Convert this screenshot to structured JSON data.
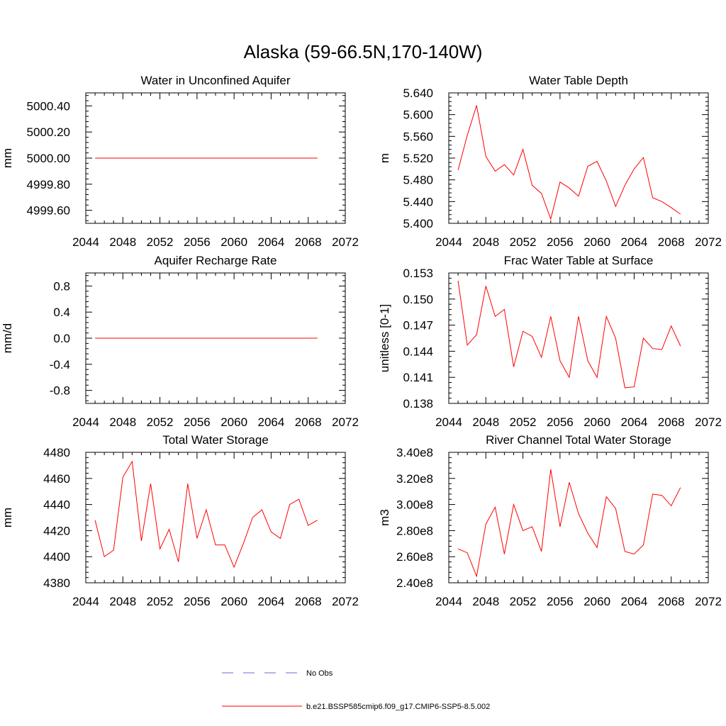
{
  "figure": {
    "title": "Alaska (59-66.5N,170-140W)"
  },
  "legend": [
    {
      "label": "No Obs",
      "color": "#6b6bd6",
      "style": "dashed"
    },
    {
      "label": "b.e21.BSSP585cmip6.f09_g17.CMIP6-SSP5-8.5.002",
      "color": "#ff0000",
      "style": "solid"
    }
  ],
  "chart_data": [
    {
      "type": "line",
      "title": "Water in Unconfined Aquifer",
      "ylabel": "mm",
      "xlim": [
        2044,
        2072
      ],
      "ylim": [
        4999.5,
        5000.5
      ],
      "xticks": [
        2044,
        2048,
        2052,
        2056,
        2060,
        2064,
        2068,
        2072
      ],
      "xtick_labels": [
        "2044",
        "2048",
        "2052",
        "2056",
        "2060",
        "2064",
        "2068",
        "2072"
      ],
      "yticks": [
        4999.6,
        4999.8,
        5000.0,
        5000.2,
        5000.4
      ],
      "ytick_labels": [
        "4999.60",
        "4999.80",
        "5000.00",
        "5000.20",
        "5000.40"
      ],
      "series": [
        {
          "color": "#ff0000",
          "x": [
            2045,
            2046,
            2047,
            2048,
            2049,
            2050,
            2051,
            2052,
            2053,
            2054,
            2055,
            2056,
            2057,
            2058,
            2059,
            2060,
            2061,
            2062,
            2063,
            2064,
            2065,
            2066,
            2067,
            2068,
            2069
          ],
          "y": [
            5000,
            5000,
            5000,
            5000,
            5000,
            5000,
            5000,
            5000,
            5000,
            5000,
            5000,
            5000,
            5000,
            5000,
            5000,
            5000,
            5000,
            5000,
            5000,
            5000,
            5000,
            5000,
            5000,
            5000,
            5000
          ]
        }
      ]
    },
    {
      "type": "line",
      "title": "Water Table Depth",
      "ylabel": "m",
      "xlim": [
        2044,
        2072
      ],
      "ylim": [
        5.4,
        5.64
      ],
      "xticks": [
        2044,
        2048,
        2052,
        2056,
        2060,
        2064,
        2068,
        2072
      ],
      "xtick_labels": [
        "2044",
        "2048",
        "2052",
        "2056",
        "2060",
        "2064",
        "2068",
        "2072"
      ],
      "yticks": [
        5.4,
        5.44,
        5.48,
        5.52,
        5.56,
        5.6,
        5.64
      ],
      "ytick_labels": [
        "5.400",
        "5.440",
        "5.480",
        "5.520",
        "5.560",
        "5.600",
        "5.640"
      ],
      "series": [
        {
          "color": "#ff0000",
          "x": [
            2045,
            2046,
            2047,
            2048,
            2049,
            2050,
            2051,
            2052,
            2053,
            2054,
            2055,
            2056,
            2057,
            2058,
            2059,
            2060,
            2061,
            2062,
            2063,
            2064,
            2065,
            2066,
            2067,
            2068,
            2069
          ],
          "y": [
            5.498,
            5.562,
            5.617,
            5.523,
            5.496,
            5.508,
            5.489,
            5.536,
            5.47,
            5.455,
            5.408,
            5.476,
            5.465,
            5.45,
            5.505,
            5.514,
            5.478,
            5.431,
            5.47,
            5.5,
            5.521,
            5.447,
            5.44,
            5.429,
            5.417
          ]
        }
      ]
    },
    {
      "type": "line",
      "title": "Aquifer Recharge Rate",
      "ylabel": "mm/d",
      "xlim": [
        2044,
        2072
      ],
      "ylim": [
        -1.0,
        1.0
      ],
      "xticks": [
        2044,
        2048,
        2052,
        2056,
        2060,
        2064,
        2068,
        2072
      ],
      "xtick_labels": [
        "2044",
        "2048",
        "2052",
        "2056",
        "2060",
        "2064",
        "2068",
        "2072"
      ],
      "yticks": [
        -0.8,
        -0.4,
        0.0,
        0.4,
        0.8
      ],
      "ytick_labels": [
        "-0.8",
        "-0.4",
        "0.0",
        "0.4",
        "0.8"
      ],
      "series": [
        {
          "color": "#ff0000",
          "x": [
            2045,
            2046,
            2047,
            2048,
            2049,
            2050,
            2051,
            2052,
            2053,
            2054,
            2055,
            2056,
            2057,
            2058,
            2059,
            2060,
            2061,
            2062,
            2063,
            2064,
            2065,
            2066,
            2067,
            2068,
            2069
          ],
          "y": [
            0,
            0,
            0,
            0,
            0,
            0,
            0,
            0,
            0,
            0,
            0,
            0,
            0,
            0,
            0,
            0,
            0,
            0,
            0,
            0,
            0,
            0,
            0,
            0,
            0
          ]
        }
      ]
    },
    {
      "type": "line",
      "title": "Frac Water Table at Surface",
      "ylabel": "unitless [0-1]",
      "xlim": [
        2044,
        2072
      ],
      "ylim": [
        0.138,
        0.153
      ],
      "xticks": [
        2044,
        2048,
        2052,
        2056,
        2060,
        2064,
        2068,
        2072
      ],
      "xtick_labels": [
        "2044",
        "2048",
        "2052",
        "2056",
        "2060",
        "2064",
        "2068",
        "2072"
      ],
      "yticks": [
        0.138,
        0.141,
        0.144,
        0.147,
        0.15,
        0.153
      ],
      "ytick_labels": [
        "0.138",
        "0.141",
        "0.144",
        "0.147",
        "0.150",
        "0.153"
      ],
      "series": [
        {
          "color": "#ff0000",
          "x": [
            2045,
            2046,
            2047,
            2048,
            2049,
            2050,
            2051,
            2052,
            2053,
            2054,
            2055,
            2056,
            2057,
            2058,
            2059,
            2060,
            2061,
            2062,
            2063,
            2064,
            2065,
            2066,
            2067,
            2068,
            2069
          ],
          "y": [
            0.1521,
            0.1447,
            0.1459,
            0.1515,
            0.148,
            0.1488,
            0.1422,
            0.1463,
            0.1457,
            0.1433,
            0.148,
            0.1429,
            0.141,
            0.148,
            0.1429,
            0.141,
            0.148,
            0.1455,
            0.1398,
            0.1399,
            0.1455,
            0.1443,
            0.1442,
            0.1469,
            0.1446
          ]
        }
      ]
    },
    {
      "type": "line",
      "title": "Total Water Storage",
      "ylabel": "mm",
      "xlim": [
        2044,
        2072
      ],
      "ylim": [
        4380,
        4480
      ],
      "xticks": [
        2044,
        2048,
        2052,
        2056,
        2060,
        2064,
        2068,
        2072
      ],
      "xtick_labels": [
        "2044",
        "2048",
        "2052",
        "2056",
        "2060",
        "2064",
        "2068",
        "2072"
      ],
      "yticks": [
        4380,
        4400,
        4420,
        4440,
        4460,
        4480
      ],
      "ytick_labels": [
        "4380",
        "4400",
        "4420",
        "4440",
        "4460",
        "4480"
      ],
      "series": [
        {
          "color": "#ff0000",
          "x": [
            2045,
            2046,
            2047,
            2048,
            2049,
            2050,
            2051,
            2052,
            2053,
            2054,
            2055,
            2056,
            2057,
            2058,
            2059,
            2060,
            2061,
            2062,
            2063,
            2064,
            2065,
            2066,
            2067,
            2068,
            2069
          ],
          "y": [
            4428,
            4400,
            4405,
            4461,
            4473,
            4412,
            4456,
            4406,
            4421,
            4396,
            4456,
            4414,
            4436,
            4409,
            4409,
            4392,
            4410,
            4430,
            4436,
            4419,
            4414,
            4440,
            4444,
            4424,
            4428
          ]
        }
      ]
    },
    {
      "type": "line",
      "title": "River Channel Total Water Storage",
      "ylabel": "m3",
      "xlim": [
        2044,
        2072
      ],
      "ylim": [
        240000000.0,
        340000000.0
      ],
      "xticks": [
        2044,
        2048,
        2052,
        2056,
        2060,
        2064,
        2068,
        2072
      ],
      "xtick_labels": [
        "2044",
        "2048",
        "2052",
        "2056",
        "2060",
        "2064",
        "2068",
        "2072"
      ],
      "yticks": [
        240000000.0,
        260000000.0,
        280000000.0,
        300000000.0,
        320000000.0,
        340000000.0
      ],
      "ytick_labels": [
        "2.40e8",
        "2.60e8",
        "2.80e8",
        "3.00e8",
        "3.20e8",
        "3.40e8"
      ],
      "series": [
        {
          "color": "#ff0000",
          "x": [
            2045,
            2046,
            2047,
            2048,
            2049,
            2050,
            2051,
            2052,
            2053,
            2054,
            2055,
            2056,
            2057,
            2058,
            2059,
            2060,
            2061,
            2062,
            2063,
            2064,
            2065,
            2066,
            2067,
            2068,
            2069
          ],
          "y": [
            266000000.0,
            263000000.0,
            245000000.0,
            285000000.0,
            298000000.0,
            262000000.0,
            300000000.0,
            280000000.0,
            283000000.0,
            264000000.0,
            327000000.0,
            283000000.0,
            317000000.0,
            293000000.0,
            278000000.0,
            267000000.0,
            306000000.0,
            297000000.0,
            264000000.0,
            262000000.0,
            269000000.0,
            308000000.0,
            307000000.0,
            299000000.0,
            313000000.0
          ]
        }
      ]
    }
  ]
}
